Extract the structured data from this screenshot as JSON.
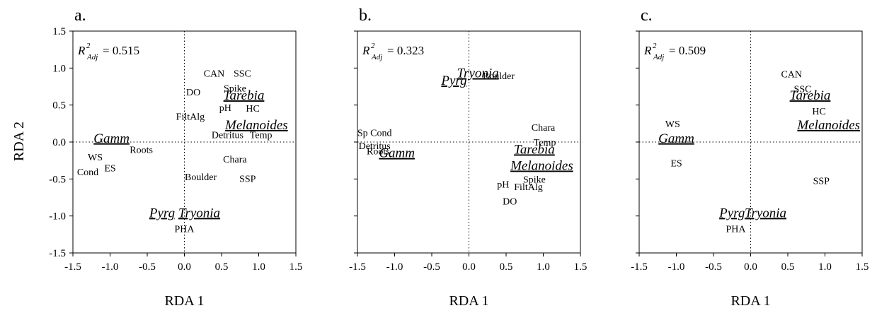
{
  "figure": {
    "ylabel": "RDA 2"
  },
  "chart_data": [
    {
      "type": "scatter",
      "panel_label": "a.",
      "xlabel": "RDA 1",
      "r2_base": "R",
      "r2_sup": "2",
      "r2_sub": "Adj",
      "r2_value": "= 0.515",
      "xlim": [
        -1.5,
        1.5
      ],
      "ylim": [
        -1.5,
        1.5
      ],
      "xticks": [
        "-1.5",
        "-1.0",
        "-0.5",
        "0.0",
        "0.5",
        "1.0",
        "1.5"
      ],
      "yticks": [
        "-1.5",
        "-1.0",
        "-0.5",
        "0.0",
        "0.5",
        "1.0",
        "1.5"
      ],
      "reference_lines": "dotted at x=0 and y=0",
      "species": [
        {
          "label": "Gamm",
          "x": -0.98,
          "y": 0.05
        },
        {
          "label": "Tarebia",
          "x": 0.8,
          "y": 0.63
        },
        {
          "label": "Melanoides",
          "x": 0.97,
          "y": 0.23
        },
        {
          "label": "Pyrg",
          "x": -0.3,
          "y": -0.96
        },
        {
          "label": "Tryonia",
          "x": 0.2,
          "y": -0.96
        }
      ],
      "variables": [
        {
          "label": "CAN",
          "x": 0.4,
          "y": 0.93
        },
        {
          "label": "SSC",
          "x": 0.78,
          "y": 0.93
        },
        {
          "label": "DO",
          "x": 0.12,
          "y": 0.68
        },
        {
          "label": "Spike",
          "x": 0.68,
          "y": 0.73
        },
        {
          "label": "pH",
          "x": 0.55,
          "y": 0.47
        },
        {
          "label": "HC",
          "x": 0.92,
          "y": 0.46
        },
        {
          "label": "FiltAlg",
          "x": 0.08,
          "y": 0.35
        },
        {
          "label": "Detritus",
          "x": 0.58,
          "y": 0.1
        },
        {
          "label": "Temp",
          "x": 1.03,
          "y": 0.1
        },
        {
          "label": "WS",
          "x": -1.2,
          "y": -0.2
        },
        {
          "label": "Roots",
          "x": -0.58,
          "y": -0.1
        },
        {
          "label": "Cond",
          "x": -1.3,
          "y": -0.4
        },
        {
          "label": "ES",
          "x": -1.0,
          "y": -0.35
        },
        {
          "label": "Chara",
          "x": 0.68,
          "y": -0.23
        },
        {
          "label": "Boulder",
          "x": 0.22,
          "y": -0.47
        },
        {
          "label": "SSP",
          "x": 0.85,
          "y": -0.49
        },
        {
          "label": "PHA",
          "x": 0.0,
          "y": -1.17
        }
      ]
    },
    {
      "type": "scatter",
      "panel_label": "b.",
      "xlabel": "RDA 1",
      "r2_base": "R",
      "r2_sup": "2",
      "r2_sub": "Adj",
      "r2_value": "= 0.323",
      "xlim": [
        -1.5,
        1.5
      ],
      "ylim": [
        -1.5,
        1.5
      ],
      "xticks": [
        "-1.5",
        "-1.0",
        "-0.5",
        "0.0",
        "0.5",
        "1.0",
        "1.5"
      ],
      "yticks": [],
      "reference_lines": "dotted at x=0 and y=0",
      "species": [
        {
          "label": "Tryonia",
          "x": 0.12,
          "y": 0.93
        },
        {
          "label": "Pyrg",
          "x": -0.2,
          "y": 0.83
        },
        {
          "label": "Gamm",
          "x": -0.97,
          "y": -0.15
        },
        {
          "label": "Tarebia",
          "x": 0.88,
          "y": -0.1
        },
        {
          "label": "Melanoides",
          "x": 0.98,
          "y": -0.32
        }
      ],
      "variables": [
        {
          "label": "Boulder",
          "x": 0.4,
          "y": 0.9
        },
        {
          "label": "Sp Cond",
          "x": -1.27,
          "y": 0.13
        },
        {
          "label": "Chara",
          "x": 1.0,
          "y": 0.2
        },
        {
          "label": "Detritus",
          "x": -1.27,
          "y": -0.05
        },
        {
          "label": "Roots",
          "x": -1.22,
          "y": -0.12
        },
        {
          "label": "Temp",
          "x": 1.02,
          "y": 0.0
        },
        {
          "label": "Spike",
          "x": 0.88,
          "y": -0.5
        },
        {
          "label": "pH",
          "x": 0.46,
          "y": -0.57
        },
        {
          "label": "FiltAlg",
          "x": 0.8,
          "y": -0.6
        },
        {
          "label": "DO",
          "x": 0.55,
          "y": -0.8
        }
      ]
    },
    {
      "type": "scatter",
      "panel_label": "c.",
      "xlabel": "RDA 1",
      "r2_base": "R",
      "r2_sup": "2",
      "r2_sub": "Adj",
      "r2_value": "= 0.509",
      "xlim": [
        -1.5,
        1.5
      ],
      "ylim": [
        -1.5,
        1.5
      ],
      "xticks": [
        "-1.5",
        "-1.0",
        "-0.5",
        "0.0",
        "0.5",
        "1.0",
        "1.5"
      ],
      "yticks": [],
      "reference_lines": "dotted at x=0 and y=0",
      "species": [
        {
          "label": "Tarebia",
          "x": 0.8,
          "y": 0.63
        },
        {
          "label": "Melanoides",
          "x": 1.05,
          "y": 0.23
        },
        {
          "label": "Gamm",
          "x": -1.0,
          "y": 0.05
        },
        {
          "label": "Pyrg",
          "x": -0.25,
          "y": -0.96
        },
        {
          "label": "Tryonia",
          "x": 0.2,
          "y": -0.96
        }
      ],
      "variables": [
        {
          "label": "CAN",
          "x": 0.55,
          "y": 0.92
        },
        {
          "label": "SSC",
          "x": 0.7,
          "y": 0.72
        },
        {
          "label": "HC",
          "x": 0.92,
          "y": 0.42
        },
        {
          "label": "WS",
          "x": -1.05,
          "y": 0.25
        },
        {
          "label": "ES",
          "x": -1.0,
          "y": -0.28
        },
        {
          "label": "SSP",
          "x": 0.95,
          "y": -0.52
        },
        {
          "label": "PHA",
          "x": -0.2,
          "y": -1.17
        }
      ]
    }
  ]
}
